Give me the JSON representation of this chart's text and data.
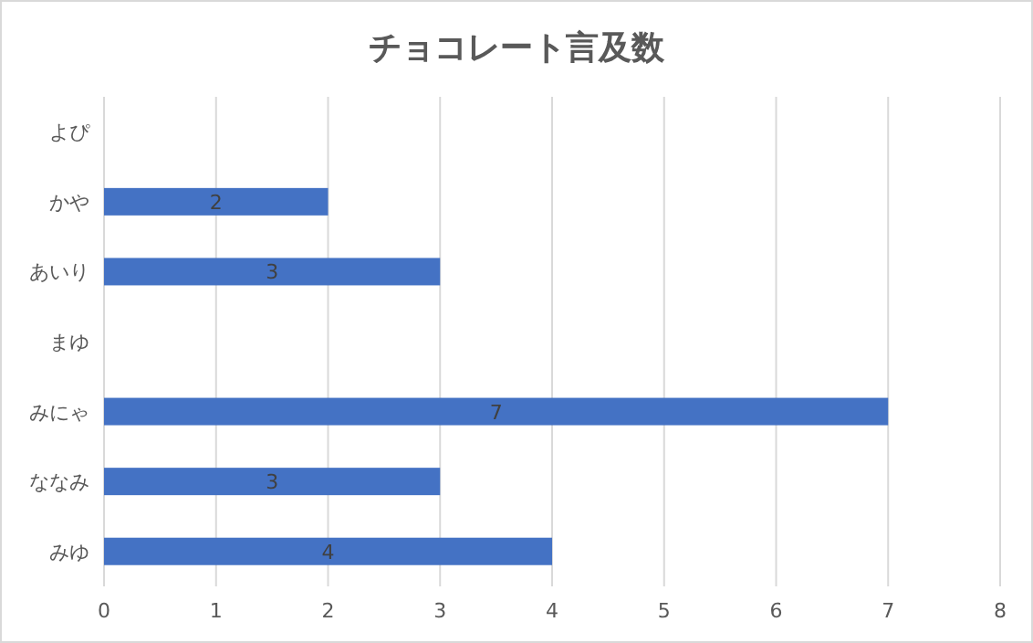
{
  "chart_data": {
    "type": "bar",
    "orientation": "horizontal",
    "title": "チョコレート言及数",
    "categories": [
      "よぴ",
      "かや",
      "あいり",
      "まゆ",
      "みにゃ",
      "ななみ",
      "みゆ"
    ],
    "values": [
      null,
      2,
      3,
      null,
      7,
      3,
      4
    ],
    "color": "#4472c4",
    "xlim": [
      0,
      8
    ],
    "xticks": [
      0,
      1,
      2,
      3,
      4,
      5,
      6,
      7,
      8
    ],
    "grid": "x",
    "data_labels": true
  }
}
